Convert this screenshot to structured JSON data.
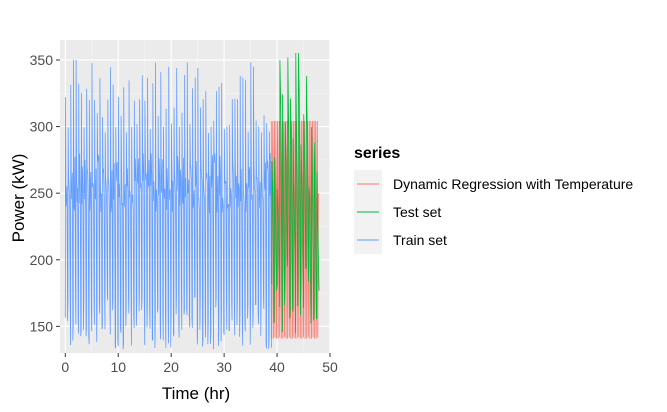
{
  "chart_data": {
    "type": "line",
    "title": "",
    "xlabel": "Time (hr)",
    "ylabel": "Power (kW)",
    "xlim": [
      -1,
      50
    ],
    "ylim": [
      130,
      365
    ],
    "x_ticks": [
      0,
      10,
      20,
      30,
      40,
      50
    ],
    "y_ticks": [
      150,
      200,
      250,
      300,
      350
    ],
    "grid": true,
    "legend": {
      "title": "series",
      "position": "right"
    },
    "series": [
      {
        "name": "Dynamic Regression with Temperature",
        "color": "#F8766D",
        "x_range": [
          38.9,
          47.9
        ],
        "cycles_per_hr": 4,
        "high": 304,
        "low": 141,
        "band": [
          238,
          262
        ],
        "x": [
          38.9,
          39.0,
          39.1,
          39.2,
          39.3,
          39.4,
          39.5,
          39.6,
          39.7,
          39.8,
          39.9,
          40.0,
          40.1,
          40.2,
          40.3,
          40.4,
          40.5,
          40.6,
          40.7,
          40.8,
          40.9,
          41.0,
          41.1,
          41.2,
          41.3,
          41.4,
          41.5,
          41.6,
          41.7,
          41.8,
          41.9,
          42.0,
          42.1,
          42.2,
          42.3,
          42.4,
          42.5,
          42.6,
          42.7,
          42.8,
          42.9,
          43.0,
          43.1,
          43.2,
          43.3,
          43.4,
          43.5,
          43.6,
          43.7,
          43.8,
          43.9,
          44.0,
          44.1,
          44.2,
          44.3,
          44.4,
          44.5,
          44.6,
          44.7,
          44.8,
          44.9,
          45.0,
          45.1,
          45.2,
          45.3,
          45.4,
          45.5,
          45.6,
          45.7,
          45.8,
          45.9,
          46.0,
          46.1,
          46.2,
          46.3,
          46.4,
          46.5,
          46.6,
          46.7,
          46.8,
          46.9,
          47.0,
          47.1,
          47.2,
          47.3,
          47.4,
          47.5,
          47.6,
          47.7,
          47.8,
          47.9
        ],
        "y": [
          304,
          141,
          250,
          304,
          141,
          252,
          304,
          142,
          248,
          304,
          141,
          255,
          304,
          141,
          246,
          304,
          142,
          250,
          304,
          141,
          258,
          304,
          141,
          244,
          304,
          142,
          252,
          304,
          141,
          260,
          304,
          141,
          240,
          304,
          142,
          250,
          304,
          141,
          255,
          304,
          141,
          245,
          304,
          142,
          250,
          304,
          141,
          262,
          304,
          141,
          248,
          304,
          142,
          250,
          304,
          141,
          256,
          304,
          141,
          243,
          304,
          142,
          250,
          304,
          141,
          258,
          304,
          141,
          246,
          304,
          142,
          252,
          304,
          141,
          249,
          304,
          141,
          254,
          304,
          142,
          247,
          304,
          141,
          253,
          304,
          141,
          250,
          304,
          142,
          248,
          250
        ]
      },
      {
        "name": "Test set",
        "color": "#00BA38",
        "x_range": [
          39.0,
          48.0
        ],
        "cycles_per_hr": 2,
        "high_range": [
          250,
          355
        ],
        "low_range": [
          145,
          210
        ],
        "peak": {
          "x": 43.8,
          "y": 355
        }
      },
      {
        "name": "Train set",
        "color": "#619CFF",
        "x_range": [
          0,
          39
        ],
        "cycles_per_hr": 2,
        "high_range": [
          295,
          350
        ],
        "low_range": [
          133,
          175
        ],
        "band": [
          235,
          280
        ],
        "peak": {
          "x": 1.9,
          "y": 350
        }
      }
    ]
  }
}
